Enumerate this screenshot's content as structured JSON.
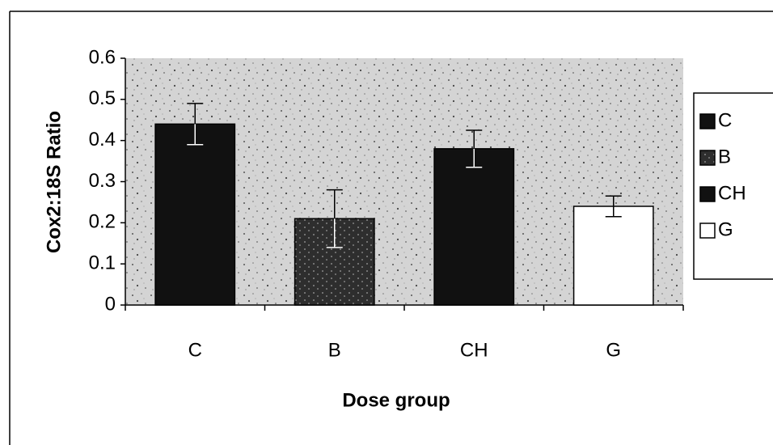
{
  "chart_data": {
    "type": "bar",
    "y_label": "Cox2:18S Ratio",
    "x_label": "Dose group",
    "categories": [
      "C",
      "B",
      "CH",
      "G"
    ],
    "values": [
      0.44,
      0.21,
      0.38,
      0.24
    ],
    "errors": [
      0.05,
      0.07,
      0.045,
      0.025
    ],
    "colors": [
      "#111111",
      "#3a3a3a",
      "#111111",
      "#ffffff"
    ],
    "ylim": [
      0,
      0.6
    ],
    "yticks": [
      0,
      0.1,
      0.2,
      0.3,
      0.4,
      0.5,
      0.6
    ],
    "legend": "right"
  }
}
